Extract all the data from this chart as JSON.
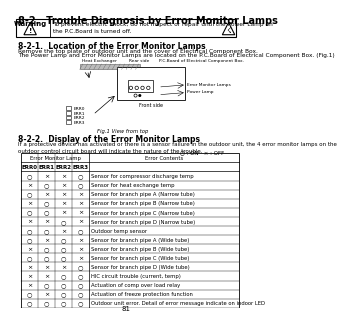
{
  "title": "8-2.  Trouble Diagnosis by Error Monitor Lamps",
  "warning_text": "To prevent electric shock, do not inspect or repair until the Power Lamp on\nthe P.C.Board is turned off.",
  "section1_title": "8-2-1.  Location of the Error Monitor Lamps",
  "section1_text1": "Remove the top plate of outdoor unit and the cover of Electrical Component Box.",
  "section1_text2": "The Power Lamp and Error Monitor Lamps are located on the P.C.Board of Electrical Component Box. (Fig.1)",
  "section2_title": "8-2-2.  Display of the Error Monitor Lamps",
  "section2_text": "If a protective device has activated or there is a sensor failure in the outdoor unit, the 4 error monitor lamps on the\noutdoor control circuit board will indicate the nature of the trouble.",
  "legend": "○ : ON   × : OFF",
  "table_header_group": "Error Monitor Lamp",
  "table_header_cols": [
    "ERR0",
    "ERR1",
    "ERR2",
    "ERR3"
  ],
  "table_header_right": "Error Contents",
  "table_rows": [
    [
      "○",
      "×",
      "×",
      "○",
      "Sensor for compressor discharge temp"
    ],
    [
      "×",
      "○",
      "×",
      "○",
      "Sensor for heat exchange temp"
    ],
    [
      "○",
      "×",
      "×",
      "×",
      "Sensor for branch pipe A (Narrow tube)"
    ],
    [
      "×",
      "○",
      "×",
      "×",
      "Sensor for branch pipe B (Narrow tube)"
    ],
    [
      "○",
      "○",
      "×",
      "×",
      "Sensor for branch pipe C (Narrow tube)"
    ],
    [
      "×",
      "×",
      "○",
      "×",
      "Sensor for branch pipe D (Narrow tube)"
    ],
    [
      "○",
      "○",
      "×",
      "○",
      "Outdoor temp sensor"
    ],
    [
      "○",
      "×",
      "○",
      "×",
      "Sensor for branch pipe A (Wide tube)"
    ],
    [
      "×",
      "○",
      "○",
      "×",
      "Sensor for branch pipe B (Wide tube)"
    ],
    [
      "○",
      "○",
      "○",
      "×",
      "Sensor for branch pipe C (Wide tube)"
    ],
    [
      "×",
      "×",
      "×",
      "○",
      "Sensor for branch pipe D (Wide tube)"
    ],
    [
      "×",
      "×",
      "○",
      "○",
      "HIC circuit trouble (current, temp)"
    ],
    [
      "×",
      "○",
      "○",
      "○",
      "Actuation of comp over load relay"
    ],
    [
      "○",
      "×",
      "○",
      "○",
      "Actuation of freeze protection function"
    ],
    [
      "○",
      "○",
      "○",
      "○",
      "Outdoor unit error. Detail of error message indicate on indoor LED"
    ]
  ],
  "fig_labels": [
    "ERR0",
    "ERR1",
    "ERR2",
    "ERR3"
  ],
  "fig_caption": "Fig.1 View from top",
  "page_number": "81",
  "bg_color": "#ffffff"
}
